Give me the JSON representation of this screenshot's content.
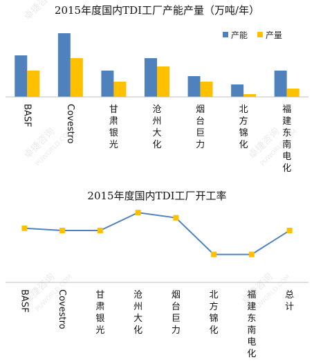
{
  "chart_data": [
    {
      "type": "bar",
      "title": "2015年度国内TDI工厂产能产量（万吨/年）",
      "categories": [
        "BASF",
        "Covestro",
        "甘肃银光",
        "沧州大化",
        "烟台巨力",
        "北方锦化",
        "福建东南电化"
      ],
      "series": [
        {
          "name": "产能",
          "color": "#4F81BD",
          "values": [
            30,
            46,
            19,
            28,
            15,
            9,
            19
          ]
        },
        {
          "name": "产量",
          "color": "#FFC000",
          "values": [
            19,
            28,
            11,
            22,
            11,
            2,
            6
          ]
        }
      ],
      "legend": "top-right",
      "ylim": [
        0,
        50
      ],
      "grid": false
    },
    {
      "type": "line",
      "title": "2015年度国内TDI工厂开工率",
      "categories": [
        "BASF",
        "Covestro",
        "甘肃银光",
        "沧州大化",
        "烟台巨力",
        "北方锦化",
        "福建东南电化",
        "总计"
      ],
      "series": [
        {
          "color": "#4F81BD",
          "marker_color": "#FFC000",
          "values": [
            0.65,
            0.62,
            0.62,
            0.86,
            0.79,
            0.3,
            0.3,
            0.62
          ]
        }
      ],
      "ylim": [
        0,
        1
      ],
      "grid": false
    }
  ],
  "watermark": {
    "cn": "卓捷咨询",
    "en": "PUWORLD.COM"
  }
}
